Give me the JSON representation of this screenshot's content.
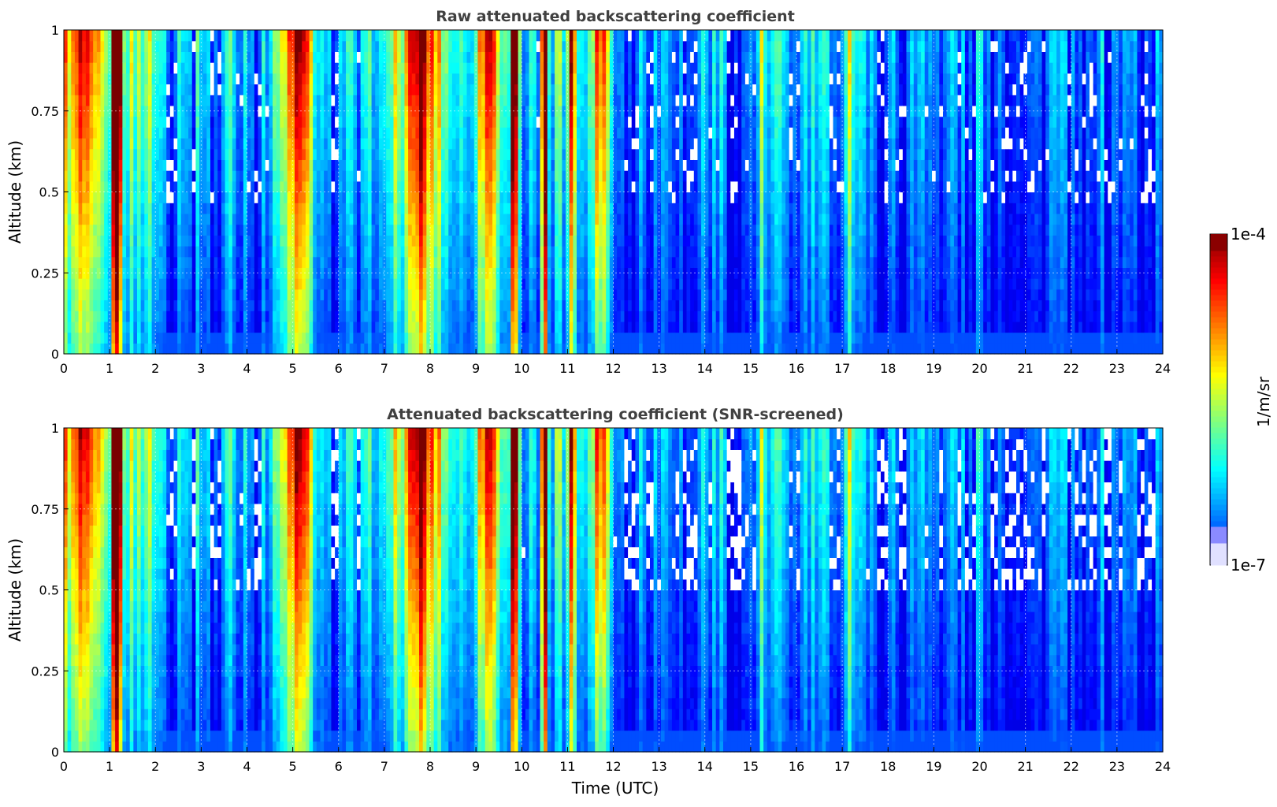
{
  "chart_data": [
    {
      "type": "heatmap",
      "title": "Raw attenuated backscattering coefficient",
      "xlabel": "",
      "ylabel": "Altitude (km)",
      "xlim": [
        0,
        24
      ],
      "ylim": [
        0,
        1
      ],
      "x_ticks": [
        "0",
        "1",
        "2",
        "3",
        "4",
        "5",
        "6",
        "7",
        "8",
        "9",
        "10",
        "11",
        "12",
        "13",
        "14",
        "15",
        "16",
        "17",
        "18",
        "19",
        "20",
        "21",
        "22",
        "23",
        "24"
      ],
      "y_ticks": [
        "0",
        "0.25",
        "0.5",
        "0.75",
        "1"
      ],
      "grid": true,
      "colormap": "jet",
      "color_scale": "log",
      "screened": false
    },
    {
      "type": "heatmap",
      "title": "Attenuated backscattering coefficient (SNR-screened)",
      "xlabel": "Time (UTC)",
      "ylabel": "Altitude (km)",
      "xlim": [
        0,
        24
      ],
      "ylim": [
        0,
        1
      ],
      "x_ticks": [
        "0",
        "1",
        "2",
        "3",
        "4",
        "5",
        "6",
        "7",
        "8",
        "9",
        "10",
        "11",
        "12",
        "13",
        "14",
        "15",
        "16",
        "17",
        "18",
        "19",
        "20",
        "21",
        "22",
        "23",
        "24"
      ],
      "y_ticks": [
        "0",
        "0.25",
        "0.5",
        "0.75",
        "1"
      ],
      "grid": true,
      "colormap": "jet",
      "color_scale": "log",
      "screened": true
    }
  ],
  "colorbar": {
    "label": "1/m/sr",
    "min_label": "1e-7",
    "max_label": "1e-4",
    "scale": "log"
  },
  "colors": {
    "background": "#ffffff",
    "title": "#404040",
    "missing": "#ffffff"
  }
}
